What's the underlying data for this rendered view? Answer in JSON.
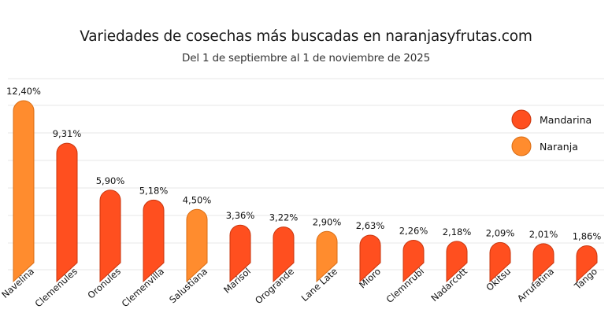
{
  "colors": {
    "Mandarina": "#ff4f1f",
    "Naranja": "#ff8c2e",
    "grid": "#ececec",
    "edge_Mandarina": "#c9360e",
    "edge_Naranja": "#d96d14"
  },
  "chart_data": {
    "type": "bar",
    "title": "Variedades de cosechas más buscadas en naranjasyfrutas.com",
    "subtitle": "Del 1 de septiembre al 1 de noviembre de 2025",
    "xlabel": "",
    "ylabel": "",
    "ylim": [
      0,
      13
    ],
    "grid": true,
    "legend_position": "top-right",
    "legend": [
      "Mandarina",
      "Naranja"
    ],
    "categories": [
      "Navelina",
      "Clemenules",
      "Oronules",
      "Clemenvilla",
      "Salustiana",
      "Marisol",
      "Orogrande",
      "Lane Late",
      "Mioro",
      "Clemnrubi",
      "Nadarcott",
      "Okitsu",
      "Arrufatina",
      "Tango"
    ],
    "values": [
      12.4,
      9.31,
      5.9,
      5.18,
      4.5,
      3.36,
      3.22,
      2.9,
      2.63,
      2.26,
      2.18,
      2.09,
      2.01,
      1.86
    ],
    "value_labels": [
      "12,40%",
      "9,31%",
      "5,90%",
      "5,18%",
      "4,50%",
      "3,36%",
      "3,22%",
      "2,90%",
      "2,63%",
      "2,26%",
      "2,18%",
      "2,09%",
      "2,01%",
      "1,86%"
    ],
    "types": [
      "Naranja",
      "Mandarina",
      "Mandarina",
      "Mandarina",
      "Naranja",
      "Mandarina",
      "Mandarina",
      "Naranja",
      "Mandarina",
      "Mandarina",
      "Mandarina",
      "Mandarina",
      "Mandarina",
      "Mandarina"
    ]
  }
}
